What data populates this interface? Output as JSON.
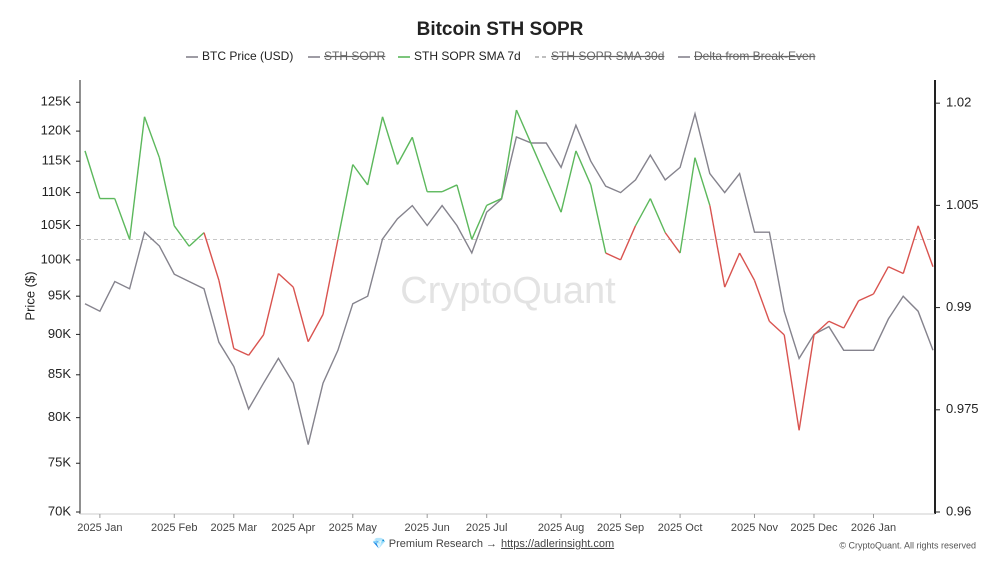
{
  "chart_data": {
    "type": "line",
    "title": "Bitcoin STH SOPR",
    "y_label": "Price ($)",
    "watermark": "CryptoQuant",
    "footer": {
      "text": "💎 Premium Research →",
      "link": "https://adlerinsight.com"
    },
    "copyright": "© CryptoQuant. All rights reserved",
    "categories": [
      null,
      "2025 Jan",
      null,
      null,
      null,
      null,
      "2025 Feb",
      null,
      null,
      null,
      "2025 Mar",
      null,
      null,
      null,
      "2025 Apr",
      null,
      null,
      null,
      "2025 May",
      null,
      null,
      null,
      null,
      "2025 Jun",
      null,
      null,
      null,
      "2025 Jul",
      null,
      null,
      null,
      null,
      "2025 Aug",
      null,
      null,
      null,
      "2025 Sep",
      null,
      null,
      null,
      "2025 Oct",
      null,
      null,
      null,
      null,
      "2025 Nov",
      null,
      null,
      null,
      "2025 Dec",
      null,
      null,
      null,
      "2026 Jan",
      null,
      null,
      null,
      null
    ],
    "yscale": "log",
    "ylim": [
      70000,
      129000
    ],
    "yticks": [
      {
        "value": 70000,
        "label": "70K"
      },
      {
        "value": 75000,
        "label": "75K"
      },
      {
        "value": 80000,
        "label": "80K"
      },
      {
        "value": 85000,
        "label": "85K"
      },
      {
        "value": 90000,
        "label": "90K"
      },
      {
        "value": 95000,
        "label": "95K"
      },
      {
        "value": 100000,
        "label": "100K"
      },
      {
        "value": 105000,
        "label": "105K"
      },
      {
        "value": 110000,
        "label": "110K"
      },
      {
        "value": 115000,
        "label": "115K"
      },
      {
        "value": 120000,
        "label": "120K"
      },
      {
        "value": 125000,
        "label": "125K"
      }
    ],
    "y2lim": [
      0.96,
      1.0234
    ],
    "y2ticks": [
      0.96,
      0.975,
      0.99,
      1.005,
      1.02
    ],
    "break_even": 1,
    "series": [
      {
        "name": "BTC Price (USD)",
        "color": "#85838d",
        "values": [
          94000,
          93000,
          97000,
          96000,
          104000,
          102000,
          98000,
          97000,
          96000,
          89000,
          86000,
          81000,
          84000,
          87000,
          84000,
          77000,
          84000,
          88000,
          94000,
          95000,
          103000,
          106000,
          108000,
          105000,
          108000,
          105000,
          101000,
          107000,
          109000,
          119000,
          118000,
          118000,
          114000,
          121000,
          115000,
          111000,
          110000,
          112000,
          116000,
          112000,
          114000,
          123000,
          113000,
          110000,
          113000,
          104000,
          104000,
          93000,
          87000,
          90000,
          91000,
          88000,
          88000,
          88000,
          92000,
          95000,
          93000,
          88000
        ]
      },
      {
        "name": "STH SOPR",
        "color": "#85838d",
        "hidden": true
      },
      {
        "name": "STH SOPR SMA 7d",
        "color": "#5cb85c",
        "below_color": "#d9534f",
        "axis": "y2",
        "values": [
          1.013,
          1.006,
          1.006,
          1.0,
          1.018,
          1.012,
          1.002,
          0.999,
          1.001,
          0.994,
          0.984,
          0.983,
          0.986,
          0.995,
          0.993,
          0.985,
          0.989,
          1.0,
          1.011,
          1.008,
          1.018,
          1.011,
          1.015,
          1.007,
          1.007,
          1.008,
          1.0,
          1.005,
          1.006,
          1.019,
          1.014,
          1.009,
          1.004,
          1.013,
          1.008,
          0.998,
          0.997,
          1.002,
          1.006,
          1.001,
          0.998,
          1.012,
          1.005,
          0.993,
          0.998,
          0.994,
          0.988,
          0.986,
          0.972,
          0.986,
          0.988,
          0.987,
          0.991,
          0.992,
          0.996,
          0.995,
          1.002,
          0.996
        ]
      },
      {
        "name": "STH SOPR SMA 30d",
        "color": "#aaaaaa",
        "dashed": true,
        "hidden": true
      },
      {
        "name": "Delta from Break-Even",
        "color": "#85838d",
        "hidden": true
      }
    ]
  }
}
